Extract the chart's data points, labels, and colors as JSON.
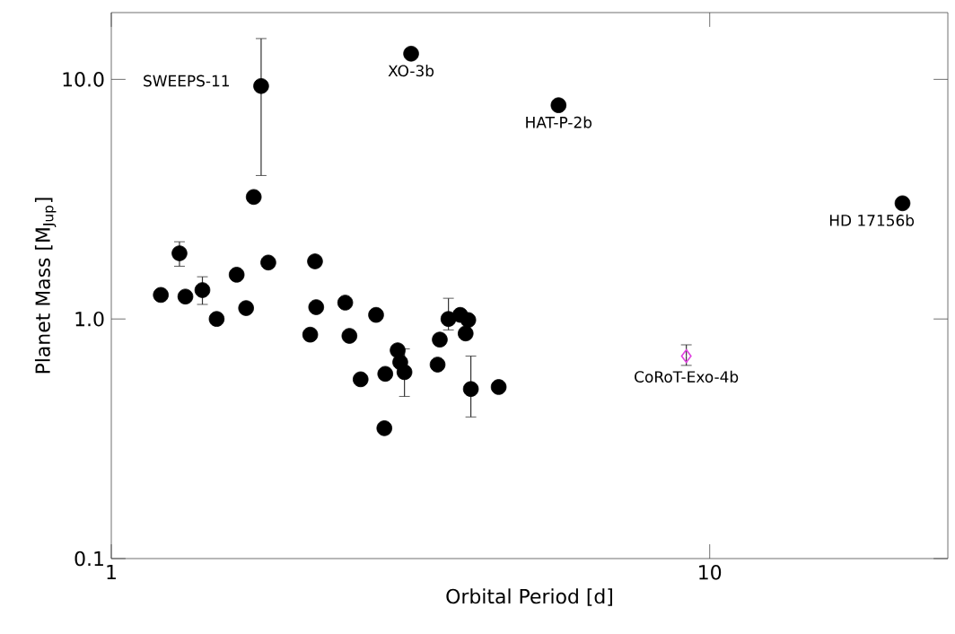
{
  "chart_data": {
    "type": "scatter",
    "xlabel": "Orbital Period [d]",
    "ylabel": "Planet Mass [M$_{Jup}$]",
    "log": "xy",
    "grid": false,
    "xlim": [
      1,
      25
    ],
    "ylim": [
      0.1,
      19
    ],
    "xticks": [
      1,
      10
    ],
    "yticks": [
      0.1,
      {
        "value": 1,
        "label": "1.0"
      },
      {
        "value": 10,
        "label": "10.0"
      }
    ],
    "series": [
      {
        "color": "#000000",
        "marker": "circle",
        "x": [
          1.21,
          1.33,
          1.42,
          1.5,
          1.68,
          1.62,
          1.83,
          2.19,
          2.15,
          2.2,
          2.46,
          2.5,
          2.61,
          2.77,
          2.87,
          2.86,
          3.01,
          3.04,
          3.09,
          3.51,
          3.54,
          3.66,
          3.83,
          3.95,
          3.91,
          3.99,
          4.44,
          1.3,
          1.73,
          1.78,
          3.17,
          5.59,
          21.0
        ],
        "values": [
          1.26,
          1.24,
          1.32,
          1.0,
          1.11,
          1.53,
          1.72,
          1.74,
          0.86,
          1.12,
          1.17,
          0.85,
          0.56,
          1.04,
          0.59,
          0.35,
          0.74,
          0.66,
          0.6,
          0.645,
          0.82,
          1.0,
          1.04,
          0.99,
          0.87,
          0.51,
          0.52,
          1.88,
          3.23,
          9.38,
          12.8,
          7.8,
          3.04
        ],
        "errors": [
          null,
          null,
          [
            1.15,
            1.5
          ],
          null,
          null,
          null,
          null,
          null,
          null,
          null,
          null,
          null,
          null,
          null,
          null,
          null,
          null,
          null,
          [
            0.475,
            0.75
          ],
          null,
          null,
          [
            0.9,
            1.22
          ],
          null,
          null,
          null,
          [
            0.39,
            0.7
          ],
          null,
          [
            1.66,
            2.1
          ],
          null,
          [
            3.97,
            14.8
          ],
          null,
          null,
          null
        ]
      },
      {
        "color": "#e040e0",
        "marker": "diamond",
        "x": [
          9.14
        ],
        "values": [
          0.7
        ],
        "errors": [
          [
            0.64,
            0.78
          ]
        ]
      }
    ],
    "annotations": [
      "SWEEPS-11",
      {
        "text": "XO-3b",
        "x": 3.17,
        "y": 12.8
      },
      {
        "text": "HAT-P-2b",
        "x": 5.59,
        "y": 7.8
      },
      {
        "text": "HD 17156b",
        "x": 21.0,
        "y": 3.04
      },
      {
        "text": "CoRoT-Exo-4b",
        "x": 9.14,
        "y": 0.7
      }
    ]
  }
}
